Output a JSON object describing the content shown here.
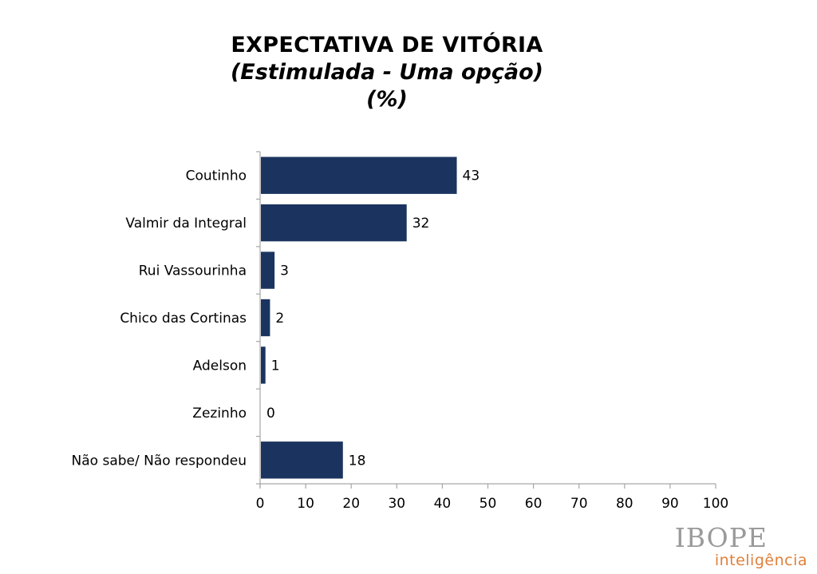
{
  "chart_data": {
    "type": "bar",
    "orientation": "horizontal",
    "title": "EXPECTATIVA DE VITÓRIA",
    "subtitle_lines": [
      "(Estimulada - Uma opção)",
      "(%)"
    ],
    "categories": [
      "Coutinho",
      "Valmir da Integral",
      "Rui Vassourinha",
      "Chico das Cortinas",
      "Adelson",
      "Zezinho",
      "Não sabe/ Não respondeu"
    ],
    "values": [
      43,
      32,
      3,
      2,
      1,
      0,
      18
    ],
    "xlim": [
      0,
      100
    ],
    "xticks": [
      0,
      10,
      20,
      30,
      40,
      50,
      60,
      70,
      80,
      90,
      100
    ],
    "xlabel": "",
    "ylabel": "",
    "grid": false,
    "legend": "none",
    "bar_color": "#1b345f",
    "data_labels": true
  },
  "logo": {
    "main": "IBOPE",
    "sub": "inteligência",
    "main_color": "#9a9a9a",
    "sub_color": "#e0803a"
  }
}
